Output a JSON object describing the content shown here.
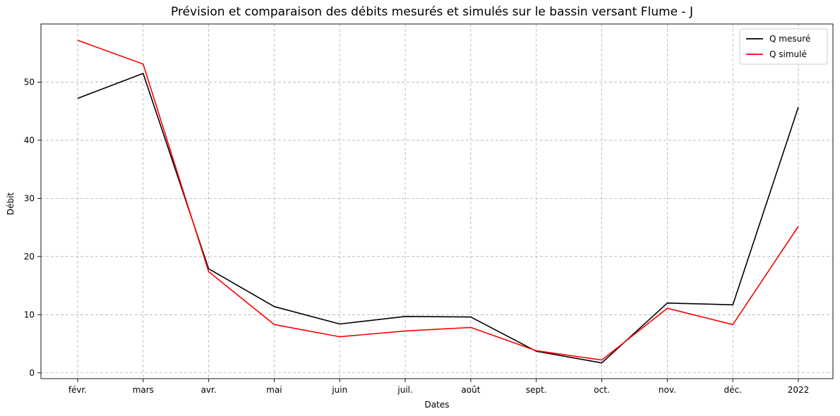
{
  "chart_data": {
    "type": "line",
    "title": "Prévision et comparaison des débits mesurés et simulés sur le bassin versant Flume - J",
    "xlabel": "Dates",
    "ylabel": "Débit",
    "x": [
      "2021-01-31",
      "2021-02-28",
      "2021-03-31",
      "2021-04-30",
      "2021-05-31",
      "2021-06-30",
      "2021-07-31",
      "2021-08-31",
      "2021-09-30",
      "2021-10-31",
      "2021-11-30",
      "2021-12-31"
    ],
    "x_tick_labels": [
      "févr.",
      "mars",
      "avr.",
      "mai",
      "juin",
      "juil.",
      "août",
      "sept.",
      "oct.",
      "nov.",
      "déc.",
      "2022"
    ],
    "ylim": [
      -1,
      60
    ],
    "y_ticks": [
      0,
      10,
      20,
      30,
      40,
      50
    ],
    "grid": true,
    "legend_position": "top-right",
    "series": [
      {
        "name": "Q mesuré",
        "color": "#000000",
        "values": [
          47.2,
          51.5,
          17.9,
          11.4,
          8.4,
          9.7,
          9.6,
          3.7,
          1.7,
          12.0,
          11.7,
          45.7
        ]
      },
      {
        "name": "Q simulé",
        "color": "#ff0000",
        "values": [
          57.2,
          53.1,
          17.4,
          8.3,
          6.2,
          7.2,
          7.8,
          3.8,
          2.2,
          11.1,
          8.3,
          25.2
        ]
      }
    ]
  }
}
